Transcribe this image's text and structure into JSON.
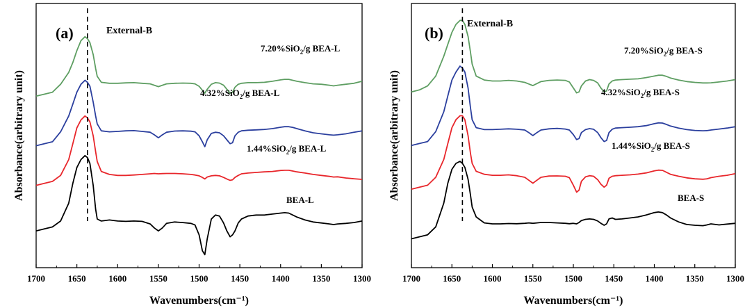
{
  "colors": {
    "pure": "#000000",
    "low": "#e8262b",
    "mid": "#2b3f9e",
    "high": "#5e9e62"
  },
  "chart_data": [
    {
      "type": "line",
      "panel_label": "(a)",
      "annotation": "External-B",
      "xlabel": "Wavenumbers(cm⁻¹)",
      "ylabel": "Absorbance(arbitrary unit)",
      "xlim": [
        1700,
        1300
      ],
      "x_reversed": true,
      "y_ticks_shown": false,
      "grid": false,
      "xticks": [
        "1700",
        "1650",
        "1600",
        "1550",
        "1500",
        "1450",
        "1400",
        "1350",
        "1300"
      ],
      "reference_line_x": 1637,
      "x": [
        1700,
        1690,
        1680,
        1670,
        1660,
        1655,
        1650,
        1645,
        1640,
        1637,
        1634,
        1630,
        1627,
        1625,
        1620,
        1610,
        1600,
        1590,
        1580,
        1570,
        1560,
        1555,
        1550,
        1545,
        1540,
        1530,
        1520,
        1510,
        1505,
        1500,
        1496,
        1493,
        1490,
        1485,
        1480,
        1475,
        1470,
        1466,
        1462,
        1459,
        1456,
        1452,
        1448,
        1440,
        1430,
        1420,
        1410,
        1400,
        1395,
        1390,
        1385,
        1380,
        1370,
        1360,
        1350,
        1340,
        1335,
        1330,
        1320,
        1310,
        1300
      ],
      "series": [
        {
          "name": "7.20%SiO₂/g BEA-L",
          "label_parts": [
            "7.20%SiO",
            "2",
            "/g BEA-L"
          ],
          "color_key": "high",
          "values": [
            0.7,
            0.71,
            0.72,
            0.76,
            0.82,
            0.87,
            0.93,
            0.98,
            1.0,
            0.99,
            0.97,
            0.91,
            0.84,
            0.8,
            0.77,
            0.765,
            0.765,
            0.767,
            0.768,
            0.765,
            0.762,
            0.755,
            0.748,
            0.755,
            0.762,
            0.765,
            0.766,
            0.765,
            0.762,
            0.75,
            0.73,
            0.715,
            0.735,
            0.76,
            0.768,
            0.766,
            0.755,
            0.735,
            0.715,
            0.72,
            0.745,
            0.76,
            0.765,
            0.768,
            0.768,
            0.77,
            0.775,
            0.782,
            0.785,
            0.785,
            0.78,
            0.775,
            0.768,
            0.762,
            0.76,
            0.755,
            0.752,
            0.755,
            0.76,
            0.765,
            0.775
          ]
        },
        {
          "name": "4.32%SiO₂/g BEA-L",
          "label_parts": [
            "4.32%SiO",
            "2",
            "/g BEA-L"
          ],
          "color_key": "mid",
          "values": [
            0.45,
            0.46,
            0.47,
            0.52,
            0.6,
            0.66,
            0.72,
            0.76,
            0.78,
            0.77,
            0.75,
            0.67,
            0.6,
            0.56,
            0.525,
            0.52,
            0.522,
            0.525,
            0.526,
            0.522,
            0.518,
            0.505,
            0.49,
            0.505,
            0.518,
            0.524,
            0.525,
            0.523,
            0.52,
            0.5,
            0.47,
            0.445,
            0.48,
            0.512,
            0.518,
            0.515,
            0.5,
            0.48,
            0.46,
            0.465,
            0.5,
            0.518,
            0.525,
            0.528,
            0.53,
            0.532,
            0.536,
            0.543,
            0.546,
            0.546,
            0.542,
            0.536,
            0.525,
            0.515,
            0.51,
            0.505,
            0.503,
            0.505,
            0.51,
            0.518,
            0.525
          ]
        },
        {
          "name": "1.44%SiO₂/g BEA-L",
          "label_parts": [
            "1.44%SiO",
            "2",
            "/g BEA-L"
          ],
          "color_key": "low",
          "values": [
            0.25,
            0.26,
            0.27,
            0.3,
            0.38,
            0.46,
            0.54,
            0.58,
            0.6,
            0.59,
            0.57,
            0.5,
            0.42,
            0.37,
            0.32,
            0.305,
            0.3,
            0.3,
            0.302,
            0.305,
            0.308,
            0.31,
            0.308,
            0.309,
            0.31,
            0.31,
            0.308,
            0.305,
            0.302,
            0.298,
            0.29,
            0.282,
            0.292,
            0.298,
            0.3,
            0.298,
            0.29,
            0.282,
            0.275,
            0.278,
            0.29,
            0.3,
            0.308,
            0.312,
            0.315,
            0.318,
            0.32,
            0.325,
            0.326,
            0.326,
            0.322,
            0.318,
            0.312,
            0.305,
            0.3,
            0.295,
            0.292,
            0.293,
            0.287,
            0.283,
            0.28
          ]
        },
        {
          "name": "BEA-L",
          "label_parts": [
            "BEA-L",
            "",
            ""
          ],
          "color_key": "pure",
          "values": [
            0.02,
            0.03,
            0.04,
            0.07,
            0.16,
            0.26,
            0.34,
            0.38,
            0.4,
            0.39,
            0.36,
            0.25,
            0.13,
            0.08,
            0.07,
            0.075,
            0.07,
            0.068,
            0.07,
            0.068,
            0.055,
            0.035,
            0.02,
            0.035,
            0.058,
            0.065,
            0.062,
            0.058,
            0.05,
            0.0,
            -0.08,
            -0.1,
            -0.02,
            0.08,
            0.1,
            0.095,
            0.06,
            0.02,
            -0.01,
            0.0,
            0.02,
            0.06,
            0.08,
            0.095,
            0.1,
            0.1,
            0.105,
            0.11,
            0.112,
            0.11,
            0.1,
            0.09,
            0.075,
            0.065,
            0.06,
            0.055,
            0.052,
            0.055,
            0.058,
            0.062,
            0.07
          ]
        }
      ],
      "ylim": [
        -0.12,
        1.08
      ]
    },
    {
      "type": "line",
      "panel_label": "(b)",
      "annotation": "External-B",
      "xlabel": "Wavenumbers(cm⁻¹)",
      "ylabel": "Absorbance(arbitrary unit)",
      "xlim": [
        1700,
        1300
      ],
      "x_reversed": true,
      "y_ticks_shown": false,
      "grid": false,
      "xticks": [
        "1700",
        "1650",
        "1600",
        "1550",
        "1500",
        "1450",
        "1400",
        "1350",
        "1300"
      ],
      "reference_line_x": 1637,
      "x": [
        1700,
        1690,
        1680,
        1670,
        1660,
        1655,
        1650,
        1645,
        1640,
        1637,
        1634,
        1630,
        1627,
        1625,
        1620,
        1610,
        1600,
        1590,
        1580,
        1570,
        1560,
        1555,
        1550,
        1545,
        1540,
        1530,
        1520,
        1510,
        1505,
        1500,
        1496,
        1493,
        1490,
        1485,
        1480,
        1475,
        1470,
        1466,
        1462,
        1459,
        1456,
        1452,
        1448,
        1440,
        1430,
        1420,
        1410,
        1400,
        1395,
        1390,
        1385,
        1380,
        1370,
        1360,
        1350,
        1340,
        1335,
        1330,
        1320,
        1310,
        1300
      ],
      "series": [
        {
          "name": "7.20%SiO₂/g BEA-S",
          "label_parts": [
            "7.20%SiO",
            "2",
            "/g BEA-S"
          ],
          "color_key": "high",
          "values": [
            0.72,
            0.73,
            0.75,
            0.8,
            0.9,
            0.96,
            1.02,
            1.06,
            1.08,
            1.08,
            1.06,
            1.0,
            0.92,
            0.86,
            0.8,
            0.78,
            0.775,
            0.775,
            0.778,
            0.775,
            0.768,
            0.76,
            0.752,
            0.762,
            0.772,
            0.778,
            0.78,
            0.778,
            0.77,
            0.74,
            0.715,
            0.72,
            0.75,
            0.775,
            0.782,
            0.778,
            0.765,
            0.74,
            0.72,
            0.725,
            0.76,
            0.775,
            0.78,
            0.782,
            0.784,
            0.786,
            0.792,
            0.8,
            0.804,
            0.804,
            0.798,
            0.79,
            0.78,
            0.772,
            0.768,
            0.765,
            0.765,
            0.766,
            0.77,
            0.775,
            0.782
          ]
        },
        {
          "name": "4.32%SiO₂/g BEA-S",
          "label_parts": [
            "4.32%SiO",
            "2",
            "/g BEA-S"
          ],
          "color_key": "mid",
          "values": [
            0.45,
            0.46,
            0.47,
            0.52,
            0.62,
            0.7,
            0.78,
            0.82,
            0.85,
            0.84,
            0.82,
            0.74,
            0.64,
            0.58,
            0.54,
            0.53,
            0.53,
            0.532,
            0.534,
            0.532,
            0.528,
            0.515,
            0.5,
            0.515,
            0.528,
            0.534,
            0.536,
            0.533,
            0.528,
            0.505,
            0.48,
            0.485,
            0.515,
            0.53,
            0.535,
            0.532,
            0.515,
            0.49,
            0.47,
            0.475,
            0.515,
            0.532,
            0.538,
            0.54,
            0.542,
            0.545,
            0.55,
            0.56,
            0.564,
            0.563,
            0.556,
            0.548,
            0.538,
            0.53,
            0.526,
            0.524,
            0.525,
            0.528,
            0.533,
            0.538,
            0.545
          ]
        },
        {
          "name": "1.44%SiO₂/g BEA-S",
          "label_parts": [
            "1.44%SiO",
            "2",
            "/g BEA-S"
          ],
          "color_key": "low",
          "values": [
            0.23,
            0.24,
            0.25,
            0.29,
            0.38,
            0.46,
            0.54,
            0.58,
            0.6,
            0.6,
            0.58,
            0.5,
            0.41,
            0.36,
            0.32,
            0.305,
            0.3,
            0.3,
            0.302,
            0.298,
            0.29,
            0.275,
            0.26,
            0.275,
            0.29,
            0.296,
            0.297,
            0.295,
            0.288,
            0.25,
            0.215,
            0.225,
            0.27,
            0.292,
            0.298,
            0.295,
            0.278,
            0.255,
            0.24,
            0.25,
            0.285,
            0.295,
            0.298,
            0.3,
            0.302,
            0.306,
            0.312,
            0.322,
            0.326,
            0.325,
            0.315,
            0.305,
            0.295,
            0.287,
            0.282,
            0.28,
            0.282,
            0.288,
            0.295,
            0.3,
            0.308
          ]
        },
        {
          "name": "BEA-S",
          "label_parts": [
            "BEA-S",
            "",
            ""
          ],
          "color_key": "pure",
          "values": [
            -0.02,
            -0.01,
            0.0,
            0.04,
            0.16,
            0.26,
            0.33,
            0.36,
            0.37,
            0.36,
            0.34,
            0.28,
            0.2,
            0.14,
            0.09,
            0.06,
            0.055,
            0.055,
            0.057,
            0.056,
            0.058,
            0.06,
            0.058,
            0.06,
            0.062,
            0.062,
            0.06,
            0.058,
            0.056,
            0.058,
            0.055,
            0.062,
            0.072,
            0.078,
            0.08,
            0.078,
            0.07,
            0.058,
            0.048,
            0.055,
            0.08,
            0.085,
            0.078,
            0.08,
            0.085,
            0.09,
            0.1,
            0.112,
            0.115,
            0.112,
            0.1,
            0.085,
            0.065,
            0.052,
            0.048,
            0.046,
            0.05,
            0.055,
            0.05,
            0.054,
            0.058
          ]
        }
      ],
      "ylim": [
        -0.12,
        1.12
      ]
    }
  ]
}
